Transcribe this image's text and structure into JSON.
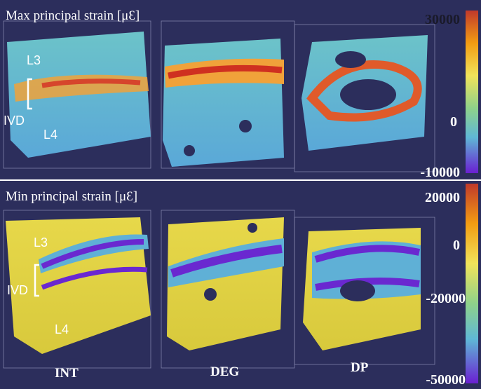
{
  "panels": [
    {
      "title": "Max principal strain [μƐ]",
      "colorbar_ticks": [
        "30000",
        "0",
        "-10000"
      ],
      "labels": [
        "L3",
        "IVD",
        "L4"
      ]
    },
    {
      "title": "Min principal strain  [μƐ]",
      "colorbar_ticks": [
        "20000",
        "0",
        "-20000",
        "-50000"
      ],
      "labels": [
        "L3",
        "IVD",
        "L4"
      ]
    }
  ],
  "columns": [
    "INT",
    "DEG",
    "DP"
  ]
}
